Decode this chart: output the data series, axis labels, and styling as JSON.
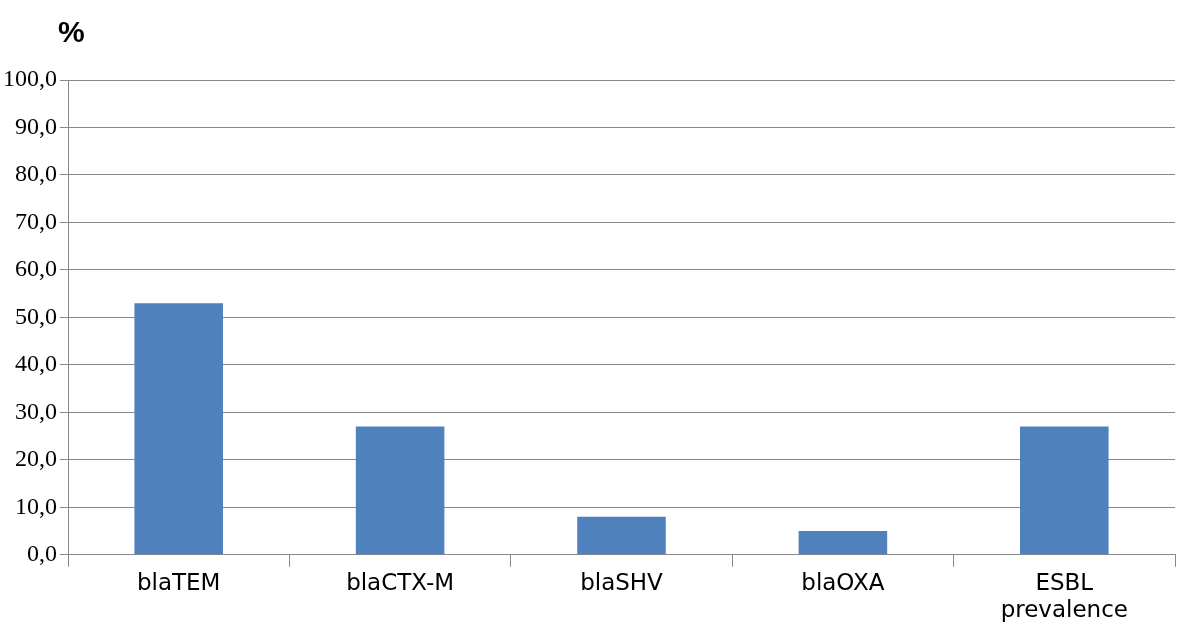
{
  "chart_data": {
    "type": "bar",
    "ylabel": "%",
    "categories": [
      "blaTEM",
      "blaCTX-M",
      "blaSHV",
      "blaOXA",
      "ESBL prevalence"
    ],
    "values": [
      53,
      27,
      8,
      5,
      27
    ],
    "color": "#4f81bd",
    "ylim": [
      0,
      100
    ],
    "yticks": [
      {
        "value": 0,
        "label": "0,0"
      },
      {
        "value": 10,
        "label": "10,0"
      },
      {
        "value": 20,
        "label": "20,0"
      },
      {
        "value": 30,
        "label": "30,0"
      },
      {
        "value": 40,
        "label": "40,0"
      },
      {
        "value": 50,
        "label": "50,0"
      },
      {
        "value": 60,
        "label": "60,0"
      },
      {
        "value": 70,
        "label": "70,0"
      },
      {
        "value": 80,
        "label": "80,0"
      },
      {
        "value": 90,
        "label": "90,0"
      },
      {
        "value": 100,
        "label": "100,0"
      }
    ],
    "grid": "y"
  }
}
